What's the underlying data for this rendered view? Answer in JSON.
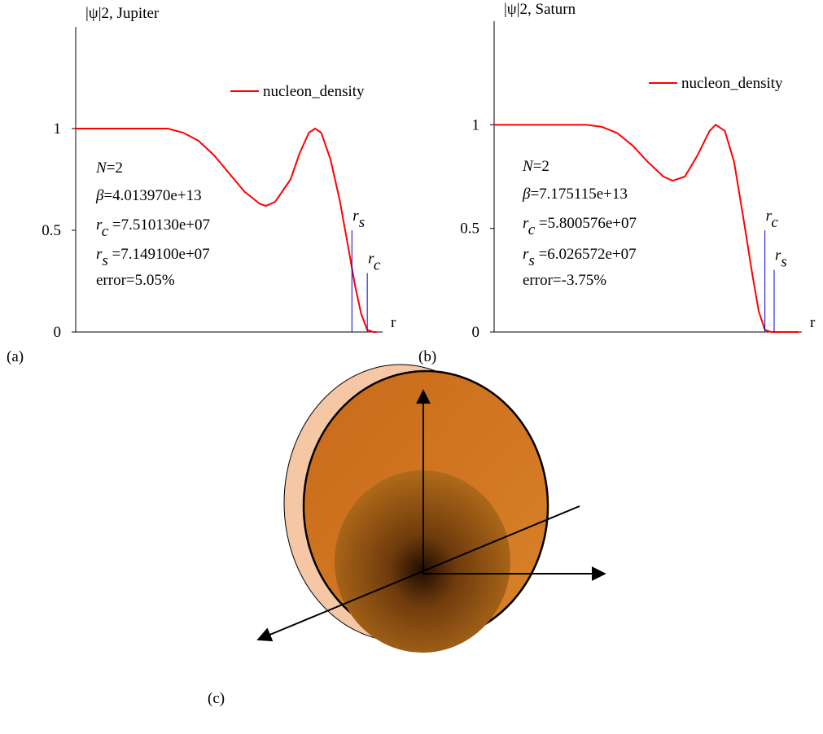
{
  "panel_labels": [
    "(a)",
    "(b)",
    "(c)"
  ],
  "chart_data": [
    {
      "type": "line",
      "y_label": "|ψ|2, Jupiter",
      "x_label": "r",
      "ylim": [
        0,
        1.5
      ],
      "yticks": [
        0,
        0.5,
        1
      ],
      "xlim": [
        0,
        1
      ],
      "series": [
        {
          "name": "nucleon_density",
          "color": "#ff0000",
          "x": [
            0,
            0.1,
            0.2,
            0.3,
            0.35,
            0.4,
            0.45,
            0.5,
            0.55,
            0.6,
            0.62,
            0.65,
            0.7,
            0.73,
            0.76,
            0.78,
            0.8,
            0.83,
            0.86,
            0.89,
            0.91,
            0.93,
            0.95,
            0.97,
            0.98
          ],
          "values": [
            1,
            1,
            1,
            1,
            0.98,
            0.94,
            0.87,
            0.78,
            0.69,
            0.63,
            0.62,
            0.64,
            0.75,
            0.88,
            0.98,
            1,
            0.98,
            0.85,
            0.65,
            0.4,
            0.23,
            0.09,
            0.01,
            0,
            0
          ]
        }
      ],
      "markers": [
        {
          "symbol": "r",
          "sub": "s",
          "x": 0.9,
          "height": 0.5
        },
        {
          "symbol": "r",
          "sub": "c",
          "x": 0.95,
          "height": 0.29
        }
      ],
      "annotations": [
        {
          "symbol": "N",
          "text": "=2"
        },
        {
          "symbol": "β",
          "text": "=4.013970e+13"
        },
        {
          "symbol": "r",
          "sub": "c",
          "text": " =7.510130e+07"
        },
        {
          "symbol": "r",
          "sub": "s",
          "text": " =7.149100e+07"
        },
        {
          "text": "error=5.05%"
        }
      ]
    },
    {
      "type": "line",
      "y_label": "|ψ|2, Saturn",
      "x_label": "r",
      "ylim": [
        0,
        1.5
      ],
      "yticks": [
        0,
        0.5,
        1
      ],
      "xlim": [
        0,
        1
      ],
      "series": [
        {
          "name": "nucleon_density",
          "color": "#ff0000",
          "x": [
            0,
            0.2,
            0.3,
            0.35,
            0.4,
            0.45,
            0.5,
            0.55,
            0.58,
            0.62,
            0.66,
            0.7,
            0.72,
            0.75,
            0.78,
            0.81,
            0.84,
            0.86,
            0.88,
            0.9,
            0.99
          ],
          "values": [
            1,
            1,
            1,
            0.99,
            0.96,
            0.9,
            0.82,
            0.75,
            0.73,
            0.75,
            0.85,
            0.97,
            1,
            0.97,
            0.82,
            0.55,
            0.27,
            0.1,
            0.01,
            0,
            0
          ]
        }
      ],
      "markers": [
        {
          "symbol": "r",
          "sub": "c",
          "x": 0.88,
          "height": 0.49
        },
        {
          "symbol": "r",
          "sub": "s",
          "x": 0.91,
          "height": 0.3
        }
      ],
      "annotations": [
        {
          "symbol": "N",
          "text": "=2"
        },
        {
          "symbol": "β",
          "text": "=7.175115e+13"
        },
        {
          "symbol": "r",
          "sub": "c",
          "text": " =5.800576e+07"
        },
        {
          "symbol": "r",
          "sub": "s",
          "text": " =6.026572e+07"
        },
        {
          "text": "error=-3.75%"
        }
      ]
    }
  ]
}
